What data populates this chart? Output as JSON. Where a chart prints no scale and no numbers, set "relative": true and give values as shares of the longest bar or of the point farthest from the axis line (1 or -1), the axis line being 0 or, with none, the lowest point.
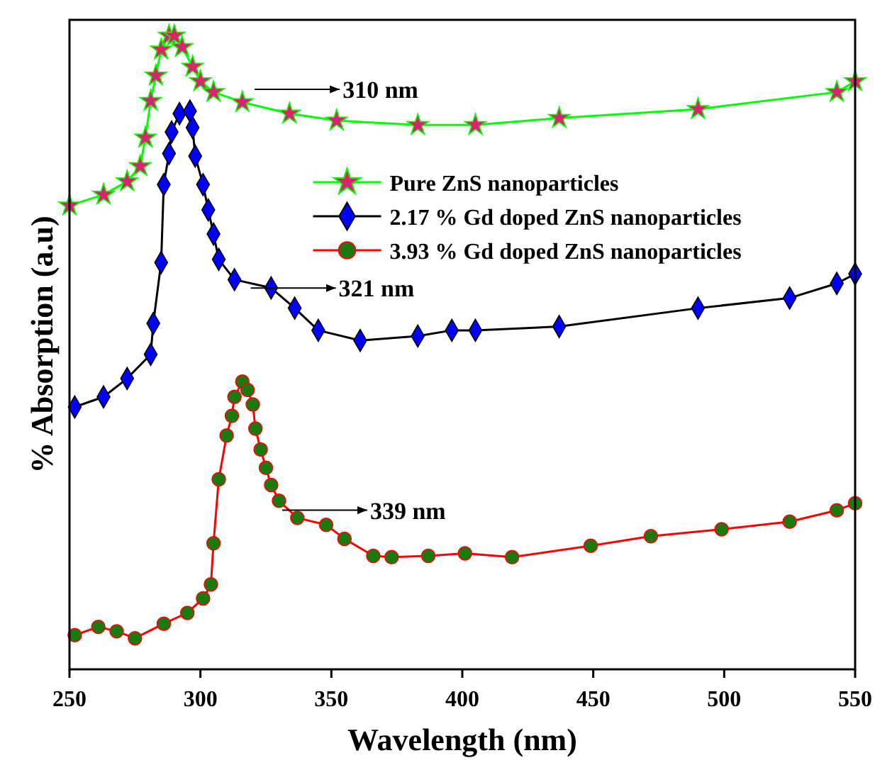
{
  "chart_data": {
    "type": "line",
    "relative": true,
    "xlabel": "Wavelength (nm)",
    "ylabel": "% Absorption (a.u)",
    "xlim": [
      250,
      550
    ],
    "xticks": [
      250,
      300,
      350,
      400,
      450,
      500,
      550
    ],
    "legend": "right",
    "grid": false,
    "line_style": "solid",
    "series": [
      {
        "name": "Pure ZnS nanoparticles",
        "color": "#00ff00",
        "marker": "star",
        "x": [
          250,
          263,
          272,
          277,
          279,
          281,
          283,
          285,
          288,
          290,
          293,
          297,
          300,
          305,
          316,
          334,
          352,
          383,
          405,
          437,
          490,
          543,
          550
        ],
        "values": [
          0.732,
          0.749,
          0.77,
          0.794,
          0.839,
          0.897,
          0.937,
          0.978,
          1.0,
          1.0,
          0.982,
          0.951,
          0.928,
          0.911,
          0.895,
          0.877,
          0.866,
          0.859,
          0.859,
          0.87,
          0.884,
          0.911,
          0.928
        ]
      },
      {
        "name": "2.17 % Gd doped ZnS nanoparticles",
        "color": "#000000",
        "marker": "diamond",
        "x": [
          252,
          263,
          272,
          281,
          282,
          285,
          286,
          288,
          289,
          292,
          296,
          297,
          298,
          301,
          303,
          305,
          307,
          313,
          327,
          336,
          345,
          361,
          383,
          396,
          405,
          437,
          490,
          525,
          543,
          550
        ],
        "values": [
          0.414,
          0.43,
          0.459,
          0.497,
          0.546,
          0.642,
          0.765,
          0.814,
          0.848,
          0.877,
          0.881,
          0.855,
          0.81,
          0.765,
          0.725,
          0.687,
          0.647,
          0.615,
          0.602,
          0.57,
          0.535,
          0.519,
          0.526,
          0.535,
          0.535,
          0.541,
          0.57,
          0.586,
          0.609,
          0.624
        ]
      },
      {
        "name": "3.93 % Gd doped ZnS nanoparticles",
        "color": "#ff0000",
        "marker": "circle",
        "x": [
          252,
          261,
          268,
          275,
          286,
          295,
          301,
          304,
          305,
          307,
          310,
          312,
          313,
          316,
          318,
          320,
          321,
          323,
          325,
          327,
          330,
          337,
          348,
          355,
          366,
          373,
          387,
          401,
          419,
          449,
          472,
          499,
          525,
          543,
          550
        ],
        "values": [
          0.054,
          0.067,
          0.06,
          0.049,
          0.072,
          0.089,
          0.112,
          0.134,
          0.199,
          0.3,
          0.369,
          0.4,
          0.43,
          0.454,
          0.441,
          0.418,
          0.38,
          0.347,
          0.318,
          0.291,
          0.266,
          0.239,
          0.228,
          0.206,
          0.179,
          0.177,
          0.179,
          0.183,
          0.177,
          0.195,
          0.21,
          0.221,
          0.233,
          0.251,
          0.262
        ]
      }
    ],
    "annotations": [
      "310 nm",
      "321 nm",
      "339 nm"
    ]
  }
}
